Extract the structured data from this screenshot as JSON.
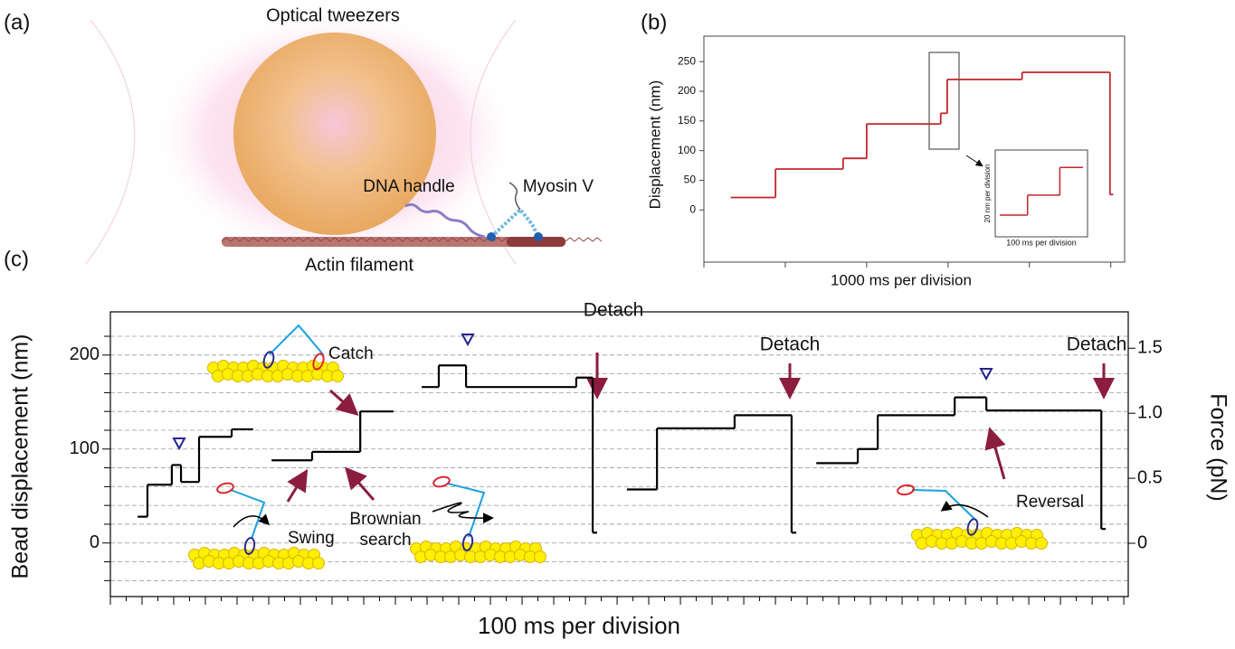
{
  "panel_labels": {
    "a": "(a)",
    "b": "(b)",
    "c": "(c)"
  },
  "panel_a": {
    "labels": {
      "optical_tweezers": "Optical tweezers",
      "dna_handle": "DNA handle",
      "myosin": "Myosin V",
      "actin": "Actin filament"
    }
  },
  "chart_data": [
    {
      "type": "line",
      "step": true,
      "ylabel": "Displacement (nm)",
      "xlabel": "1000 ms per division",
      "x": [
        0.33,
        0.88,
        1.71,
        2.0,
        2.91,
        2.99,
        3.91,
        4.99,
        5.03
      ],
      "values": [
        21,
        69,
        87,
        145,
        163,
        220,
        232,
        26,
        26
      ],
      "color": "#c0272d",
      "xlim": [
        0,
        5.17
      ],
      "xticks": [
        0,
        1,
        2,
        3,
        4,
        5
      ],
      "ylim": [
        -88,
        293
      ],
      "yticks": [
        0,
        50,
        100,
        150,
        200,
        250
      ],
      "inset": {
        "ylabel": "20 nm per division",
        "xlabel": "100 ms per division",
        "x": [
          5,
          35,
          70,
          95
        ],
        "values": [
          25,
          48,
          80,
          80
        ],
        "xlim": [
          0,
          100
        ],
        "ylim": [
          0,
          100
        ],
        "color": "#c0272d"
      }
    },
    {
      "type": "line",
      "step": true,
      "ylabel": "Bead displacement (nm)",
      "y2label": "Force (pN)",
      "xlabel": "100 ms per division",
      "x": [
        86,
        117,
        194,
        223,
        280,
        383,
        451,
        null,
        509,
        637,
        789,
        894,
        null,
        983,
        1037,
        1123,
        1471,
        1523,
        1537,
        null,
        1631,
        1726,
        1971,
        2151,
        2166,
        null,
        2229,
        2360,
        2423,
        2666,
        2766,
        3129,
        3143
      ],
      "values": [
        28,
        62,
        83,
        65,
        113,
        121,
        121,
        null,
        88,
        97,
        140,
        140,
        null,
        166,
        189,
        166,
        176,
        11,
        11,
        null,
        57,
        122,
        136,
        11,
        11,
        null,
        85,
        100,
        136,
        155,
        141,
        15,
        15
      ],
      "color": "#000000",
      "xlim": [
        0,
        3214
      ],
      "xticks": [
        0,
        50,
        100,
        150,
        200,
        250,
        300,
        350,
        400,
        450,
        500,
        550,
        600,
        650,
        700,
        750,
        800,
        850,
        900,
        950,
        1000,
        1050,
        1100,
        1150,
        1200,
        1250,
        1300,
        1350,
        1400,
        1450,
        1500,
        1550,
        1600,
        1650,
        1700,
        1750,
        1800,
        1850,
        1900,
        1950,
        2000,
        2050,
        2100,
        2150,
        2200,
        2250,
        2300,
        2350,
        2400,
        2450,
        2500,
        2550,
        2600,
        2650,
        2700,
        2750,
        2800,
        2850,
        2900,
        2950,
        3000,
        3050,
        3100,
        3150,
        3200
      ],
      "ylim": [
        -57,
        246
      ],
      "yticks": [
        0,
        100,
        200
      ],
      "minor_yticks": [
        -40,
        -20,
        20,
        40,
        60,
        80,
        120,
        140,
        160,
        180,
        220
      ],
      "grid": true,
      "y2lim": [
        -0.41,
        1.78
      ],
      "y2ticks": [
        0,
        0.5,
        {
          "value": 1,
          "label": "1.0"
        },
        1.5
      ],
      "annotations": [
        "Catch",
        "Swing",
        "Brownian",
        "search",
        "Reversal",
        "Detach",
        "Detach",
        "Detach"
      ]
    }
  ]
}
